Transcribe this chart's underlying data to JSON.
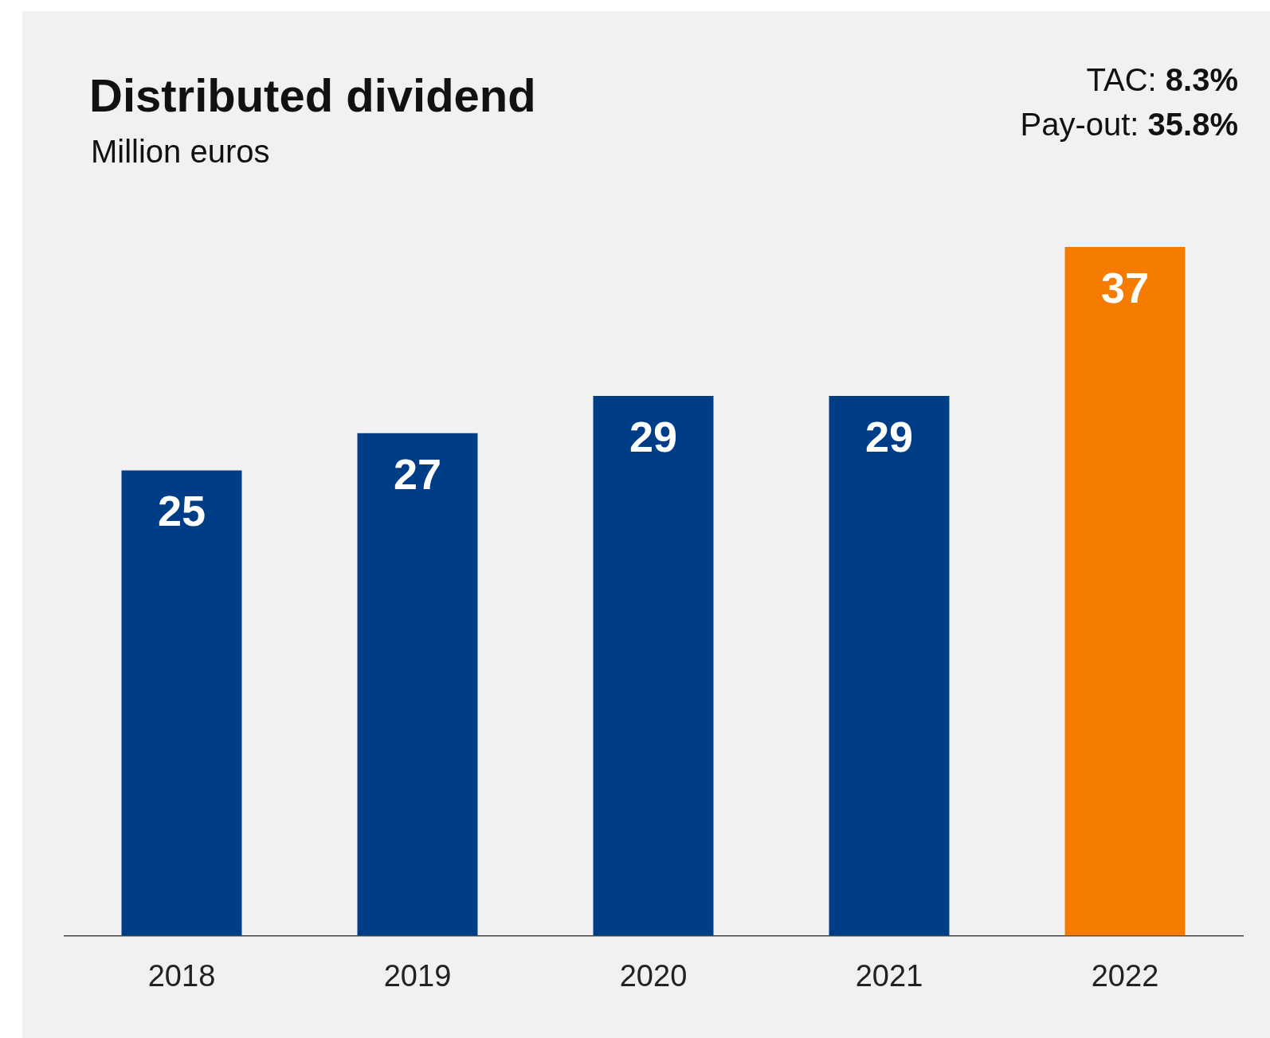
{
  "chart_data": {
    "type": "bar",
    "title": "Distributed dividend",
    "subtitle": "Million euros",
    "annotations": [
      "TAC: 8.3%",
      "Pay-out: 35.8%"
    ],
    "categories": [
      "2018",
      "2019",
      "2020",
      "2021",
      "2022"
    ],
    "values": [
      25,
      27,
      29,
      29,
      37
    ],
    "colors": [
      "#003d87",
      "#003d87",
      "#003d87",
      "#003d87",
      "#f57c00"
    ],
    "data_labels": true,
    "grid": false,
    "legend": false
  }
}
